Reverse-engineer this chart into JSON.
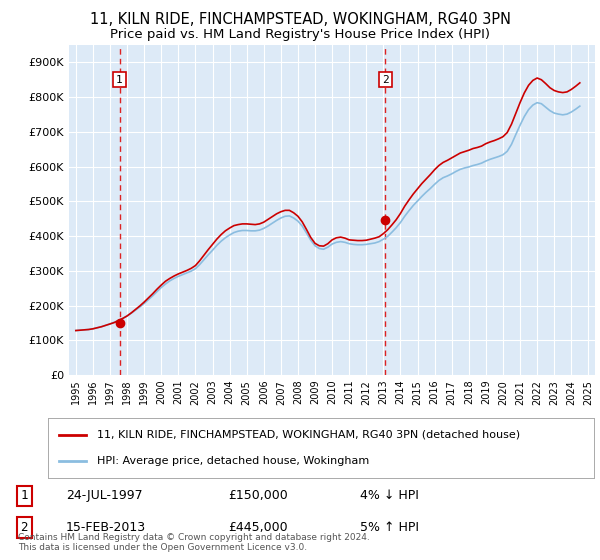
{
  "title": "11, KILN RIDE, FINCHAMPSTEAD, WOKINGHAM, RG40 3PN",
  "subtitle": "Price paid vs. HM Land Registry's House Price Index (HPI)",
  "title_fontsize": 10.5,
  "subtitle_fontsize": 9.5,
  "bg_color": "#ddeaf7",
  "grid_color": "#ffffff",
  "ylim": [
    0,
    950000
  ],
  "yticks": [
    0,
    100000,
    200000,
    300000,
    400000,
    500000,
    600000,
    700000,
    800000,
    900000
  ],
  "ytick_labels": [
    "£0",
    "£100K",
    "£200K",
    "£300K",
    "£400K",
    "£500K",
    "£600K",
    "£700K",
    "£800K",
    "£900K"
  ],
  "xlim_start": 1994.6,
  "xlim_end": 2025.4,
  "xticks": [
    1995,
    1996,
    1997,
    1998,
    1999,
    2000,
    2001,
    2002,
    2003,
    2004,
    2005,
    2006,
    2007,
    2008,
    2009,
    2010,
    2011,
    2012,
    2013,
    2014,
    2015,
    2016,
    2017,
    2018,
    2019,
    2020,
    2021,
    2022,
    2023,
    2024,
    2025
  ],
  "sale1_x": 1997.56,
  "sale1_y": 150000,
  "sale2_x": 2013.12,
  "sale2_y": 445000,
  "hpi_color": "#8bbde0",
  "price_color": "#cc0000",
  "vline_color": "#dd2222",
  "legend_label_price": "11, KILN RIDE, FINCHAMPSTEAD, WOKINGHAM, RG40 3PN (detached house)",
  "legend_label_hpi": "HPI: Average price, detached house, Wokingham",
  "annotation1_label": "1",
  "annotation2_label": "2",
  "sale1_date": "24-JUL-1997",
  "sale1_price": "£150,000",
  "sale1_hpi": "4% ↓ HPI",
  "sale2_date": "15-FEB-2013",
  "sale2_price": "£445,000",
  "sale2_hpi": "5% ↑ HPI",
  "footer": "Contains HM Land Registry data © Crown copyright and database right 2024.\nThis data is licensed under the Open Government Licence v3.0.",
  "hpi_data_x": [
    1995.0,
    1995.25,
    1995.5,
    1995.75,
    1996.0,
    1996.25,
    1996.5,
    1996.75,
    1997.0,
    1997.25,
    1997.5,
    1997.75,
    1998.0,
    1998.25,
    1998.5,
    1998.75,
    1999.0,
    1999.25,
    1999.5,
    1999.75,
    2000.0,
    2000.25,
    2000.5,
    2000.75,
    2001.0,
    2001.25,
    2001.5,
    2001.75,
    2002.0,
    2002.25,
    2002.5,
    2002.75,
    2003.0,
    2003.25,
    2003.5,
    2003.75,
    2004.0,
    2004.25,
    2004.5,
    2004.75,
    2005.0,
    2005.25,
    2005.5,
    2005.75,
    2006.0,
    2006.25,
    2006.5,
    2006.75,
    2007.0,
    2007.25,
    2007.5,
    2007.75,
    2008.0,
    2008.25,
    2008.5,
    2008.75,
    2009.0,
    2009.25,
    2009.5,
    2009.75,
    2010.0,
    2010.25,
    2010.5,
    2010.75,
    2011.0,
    2011.25,
    2011.5,
    2011.75,
    2012.0,
    2012.25,
    2012.5,
    2012.75,
    2013.0,
    2013.25,
    2013.5,
    2013.75,
    2014.0,
    2014.25,
    2014.5,
    2014.75,
    2015.0,
    2015.25,
    2015.5,
    2015.75,
    2016.0,
    2016.25,
    2016.5,
    2016.75,
    2017.0,
    2017.25,
    2017.5,
    2017.75,
    2018.0,
    2018.25,
    2018.5,
    2018.75,
    2019.0,
    2019.25,
    2019.5,
    2019.75,
    2020.0,
    2020.25,
    2020.5,
    2020.75,
    2021.0,
    2021.25,
    2021.5,
    2021.75,
    2022.0,
    2022.25,
    2022.5,
    2022.75,
    2023.0,
    2023.25,
    2023.5,
    2023.75,
    2024.0,
    2024.25,
    2024.5
  ],
  "hpi_data_y": [
    128000,
    129000,
    130000,
    131000,
    133000,
    136000,
    139000,
    143000,
    147000,
    152000,
    157000,
    163000,
    170000,
    178000,
    187000,
    196000,
    206000,
    217000,
    228000,
    240000,
    252000,
    262000,
    271000,
    278000,
    284000,
    289000,
    294000,
    299000,
    306000,
    318000,
    332000,
    346000,
    359000,
    373000,
    385000,
    395000,
    403000,
    410000,
    414000,
    416000,
    416000,
    415000,
    415000,
    417000,
    422000,
    429000,
    437000,
    445000,
    452000,
    457000,
    458000,
    452000,
    443000,
    429000,
    409000,
    388000,
    372000,
    364000,
    362000,
    368000,
    377000,
    382000,
    384000,
    382000,
    378000,
    376000,
    375000,
    375000,
    376000,
    378000,
    380000,
    384000,
    391000,
    399000,
    411000,
    424000,
    439000,
    457000,
    473000,
    488000,
    501000,
    514000,
    526000,
    537000,
    549000,
    560000,
    568000,
    573000,
    579000,
    586000,
    592000,
    596000,
    599000,
    603000,
    606000,
    610000,
    616000,
    621000,
    625000,
    629000,
    634000,
    644000,
    664000,
    692000,
    719000,
    744000,
    764000,
    777000,
    784000,
    781000,
    771000,
    761000,
    754000,
    751000,
    749000,
    751000,
    757000,
    765000,
    774000
  ],
  "price_data_x": [
    1995.0,
    1995.25,
    1995.5,
    1995.75,
    1996.0,
    1996.25,
    1996.5,
    1996.75,
    1997.0,
    1997.25,
    1997.5,
    1997.75,
    1998.0,
    1998.25,
    1998.5,
    1998.75,
    1999.0,
    1999.25,
    1999.5,
    1999.75,
    2000.0,
    2000.25,
    2000.5,
    2000.75,
    2001.0,
    2001.25,
    2001.5,
    2001.75,
    2002.0,
    2002.25,
    2002.5,
    2002.75,
    2003.0,
    2003.25,
    2003.5,
    2003.75,
    2004.0,
    2004.25,
    2004.5,
    2004.75,
    2005.0,
    2005.25,
    2005.5,
    2005.75,
    2006.0,
    2006.25,
    2006.5,
    2006.75,
    2007.0,
    2007.25,
    2007.5,
    2007.75,
    2008.0,
    2008.25,
    2008.5,
    2008.75,
    2009.0,
    2009.25,
    2009.5,
    2009.75,
    2010.0,
    2010.25,
    2010.5,
    2010.75,
    2011.0,
    2011.25,
    2011.5,
    2011.75,
    2012.0,
    2012.25,
    2012.5,
    2012.75,
    2013.0,
    2013.25,
    2013.5,
    2013.75,
    2014.0,
    2014.25,
    2014.5,
    2014.75,
    2015.0,
    2015.25,
    2015.5,
    2015.75,
    2016.0,
    2016.25,
    2016.5,
    2016.75,
    2017.0,
    2017.25,
    2017.5,
    2017.75,
    2018.0,
    2018.25,
    2018.5,
    2018.75,
    2019.0,
    2019.25,
    2019.5,
    2019.75,
    2020.0,
    2020.25,
    2020.5,
    2020.75,
    2021.0,
    2021.25,
    2021.5,
    2021.75,
    2022.0,
    2022.25,
    2022.5,
    2022.75,
    2023.0,
    2023.25,
    2023.5,
    2023.75,
    2024.0,
    2024.25,
    2024.5
  ],
  "price_data_y": [
    128000,
    129000,
    130000,
    131000,
    133000,
    136000,
    139000,
    143000,
    147000,
    151000,
    157000,
    163000,
    170000,
    179000,
    189000,
    199000,
    210000,
    222000,
    234000,
    247000,
    259000,
    270000,
    278000,
    285000,
    291000,
    296000,
    301000,
    307000,
    315000,
    329000,
    345000,
    361000,
    376000,
    391000,
    404000,
    415000,
    423000,
    430000,
    433000,
    435000,
    435000,
    434000,
    433000,
    435000,
    440000,
    448000,
    456000,
    464000,
    470000,
    474000,
    474000,
    467000,
    457000,
    441000,
    419000,
    396000,
    379000,
    372000,
    371000,
    378000,
    389000,
    395000,
    397000,
    394000,
    389000,
    388000,
    387000,
    387000,
    388000,
    391000,
    394000,
    398000,
    407000,
    418000,
    432000,
    447000,
    465000,
    486000,
    504000,
    521000,
    536000,
    551000,
    564000,
    577000,
    591000,
    603000,
    612000,
    618000,
    625000,
    632000,
    639000,
    643000,
    647000,
    652000,
    655000,
    659000,
    666000,
    671000,
    675000,
    680000,
    686000,
    698000,
    722000,
    753000,
    784000,
    812000,
    834000,
    848000,
    855000,
    850000,
    839000,
    827000,
    819000,
    815000,
    813000,
    815000,
    822000,
    831000,
    841000
  ]
}
